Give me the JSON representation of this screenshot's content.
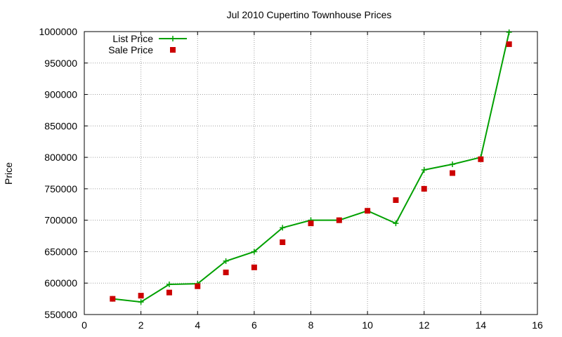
{
  "chart_data": {
    "type": "line",
    "title": "Jul 2010 Cupertino Townhouse Prices",
    "xlabel": "",
    "ylabel": "Price",
    "xlim": [
      0,
      16
    ],
    "ylim": [
      550000,
      1000000
    ],
    "x_ticks": [
      0,
      2,
      4,
      6,
      8,
      10,
      12,
      14,
      16
    ],
    "y_ticks": [
      550000,
      600000,
      650000,
      700000,
      750000,
      800000,
      850000,
      900000,
      950000,
      1000000
    ],
    "grid": true,
    "legend_position": "top-left",
    "series": [
      {
        "name": "List Price",
        "style": "line-with-plus-markers",
        "color": "#00a000",
        "x": [
          1,
          2,
          3,
          4,
          5,
          6,
          7,
          8,
          9,
          10,
          11,
          12,
          13,
          14,
          15
        ],
        "y": [
          575000,
          570000,
          598000,
          599000,
          635000,
          650000,
          688000,
          700000,
          700000,
          715000,
          695000,
          780000,
          789000,
          800000,
          999000
        ]
      },
      {
        "name": "Sale Price",
        "style": "square-markers",
        "color": "#cc0000",
        "x": [
          1,
          2,
          3,
          4,
          5,
          6,
          7,
          8,
          9,
          10,
          11,
          12,
          13,
          14,
          15
        ],
        "y": [
          575000,
          580000,
          585000,
          595000,
          617000,
          625000,
          665000,
          695000,
          700000,
          715000,
          732000,
          750000,
          775000,
          797000,
          980000
        ]
      }
    ]
  }
}
